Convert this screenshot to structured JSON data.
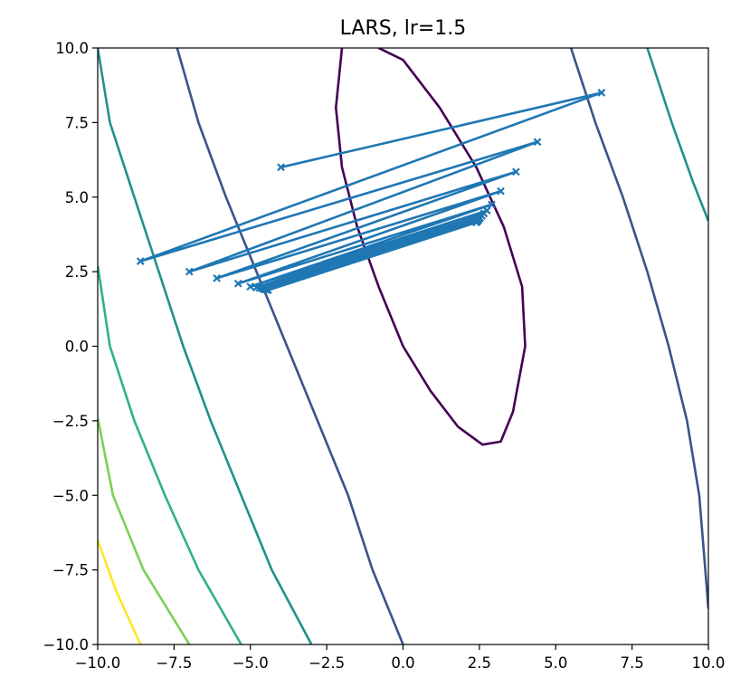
{
  "chart_data": {
    "type": "line",
    "title": "LARS, lr=1.5",
    "xlabel": "",
    "ylabel": "",
    "xlim": [
      -10,
      10
    ],
    "ylim": [
      -10,
      10
    ],
    "x_ticks": [
      "−10.0",
      "−7.5",
      "−5.0",
      "−2.5",
      "0.0",
      "2.5",
      "5.0",
      "7.5",
      "10.0"
    ],
    "y_ticks": [
      "−10.0",
      "−7.5",
      "−5.0",
      "−2.5",
      "0.0",
      "2.5",
      "5.0",
      "7.5",
      "10.0"
    ],
    "grid": false,
    "contour_colors": [
      "#440154",
      "#3b528b",
      "#21918c",
      "#2fb47c",
      "#7ad151",
      "#fde725"
    ],
    "contours": [
      {
        "level": 1,
        "color": "#440154",
        "points": [
          [
            -2.0,
            10.0
          ],
          [
            -2.2,
            8.0
          ],
          [
            -2.0,
            6.0
          ],
          [
            -1.5,
            4.0
          ],
          [
            -0.8,
            2.0
          ],
          [
            0.0,
            0.0
          ],
          [
            0.9,
            -1.5
          ],
          [
            1.8,
            -2.7
          ],
          [
            2.6,
            -3.3
          ],
          [
            3.2,
            -3.2
          ],
          [
            3.6,
            -2.2
          ],
          [
            4.0,
            0.0
          ],
          [
            3.9,
            2.0
          ],
          [
            3.3,
            4.0
          ],
          [
            2.4,
            6.0
          ],
          [
            1.2,
            8.0
          ],
          [
            0.0,
            9.6
          ],
          [
            -0.8,
            10.0
          ]
        ]
      },
      {
        "level": 2,
        "color": "#3b528b",
        "points": [
          [
            -7.4,
            10.0
          ],
          [
            -6.7,
            7.5
          ],
          [
            -5.8,
            5.0
          ],
          [
            -4.8,
            2.5
          ],
          [
            -3.8,
            0.0
          ],
          [
            -2.8,
            -2.5
          ],
          [
            -1.8,
            -5.0
          ],
          [
            -1.0,
            -7.5
          ],
          [
            0.0,
            -10.0
          ]
        ]
      },
      {
        "level": 2,
        "color": "#3b528b",
        "points": [
          [
            5.5,
            10.0
          ],
          [
            6.3,
            7.5
          ],
          [
            7.2,
            5.0
          ],
          [
            8.0,
            2.5
          ],
          [
            8.7,
            0.0
          ],
          [
            9.3,
            -2.5
          ],
          [
            9.7,
            -5.0
          ],
          [
            9.9,
            -7.5
          ],
          [
            10.0,
            -8.8
          ]
        ]
      },
      {
        "level": 3,
        "color": "#21918c",
        "points": [
          [
            -10.0,
            10.0
          ],
          [
            -9.6,
            7.5
          ],
          [
            -8.8,
            5.0
          ],
          [
            -8.0,
            2.5
          ],
          [
            -7.2,
            0.0
          ],
          [
            -6.3,
            -2.5
          ],
          [
            -5.3,
            -5.0
          ],
          [
            -4.3,
            -7.5
          ],
          [
            -3.0,
            -10.0
          ]
        ]
      },
      {
        "level": 3,
        "color": "#21918c",
        "points": [
          [
            8.0,
            10.0
          ],
          [
            8.8,
            7.5
          ],
          [
            9.5,
            5.5
          ],
          [
            10.0,
            4.2
          ]
        ]
      },
      {
        "level": 4,
        "color": "#2fb47c",
        "points": [
          [
            -10.0,
            2.7
          ],
          [
            -9.6,
            0.0
          ],
          [
            -8.8,
            -2.5
          ],
          [
            -7.8,
            -5.0
          ],
          [
            -6.7,
            -7.5
          ],
          [
            -5.3,
            -10.0
          ]
        ]
      },
      {
        "level": 5,
        "color": "#7ad151",
        "points": [
          [
            -10.0,
            -2.4
          ],
          [
            -9.5,
            -5.0
          ],
          [
            -8.5,
            -7.5
          ],
          [
            -7.0,
            -10.0
          ]
        ]
      },
      {
        "level": 6,
        "color": "#fde725",
        "points": [
          [
            -10.0,
            -6.5
          ],
          [
            -9.4,
            -8.2
          ],
          [
            -8.6,
            -10.0
          ]
        ]
      }
    ],
    "series": [
      {
        "color": "#1f77b4",
        "marker": "x",
        "points": [
          [
            -4.0,
            6.0
          ],
          [
            6.5,
            8.5
          ],
          [
            -8.6,
            2.85
          ],
          [
            4.4,
            6.85
          ],
          [
            -7.0,
            2.5
          ],
          [
            3.7,
            5.85
          ],
          [
            -6.1,
            2.28
          ],
          [
            3.2,
            5.2
          ],
          [
            -5.4,
            2.1
          ],
          [
            2.9,
            4.75
          ],
          [
            -5.0,
            2.0
          ],
          [
            2.75,
            4.55
          ],
          [
            -4.8,
            1.97
          ],
          [
            2.65,
            4.45
          ],
          [
            -4.7,
            1.95
          ],
          [
            2.58,
            4.37
          ],
          [
            -4.6,
            1.93
          ],
          [
            2.52,
            4.3
          ],
          [
            -4.55,
            1.91
          ],
          [
            2.48,
            4.25
          ],
          [
            -4.5,
            1.9
          ],
          [
            2.45,
            4.2
          ],
          [
            -4.45,
            1.89
          ],
          [
            2.42,
            4.17
          ],
          [
            -4.42,
            1.88
          ],
          [
            2.4,
            4.15
          ]
        ]
      }
    ]
  }
}
